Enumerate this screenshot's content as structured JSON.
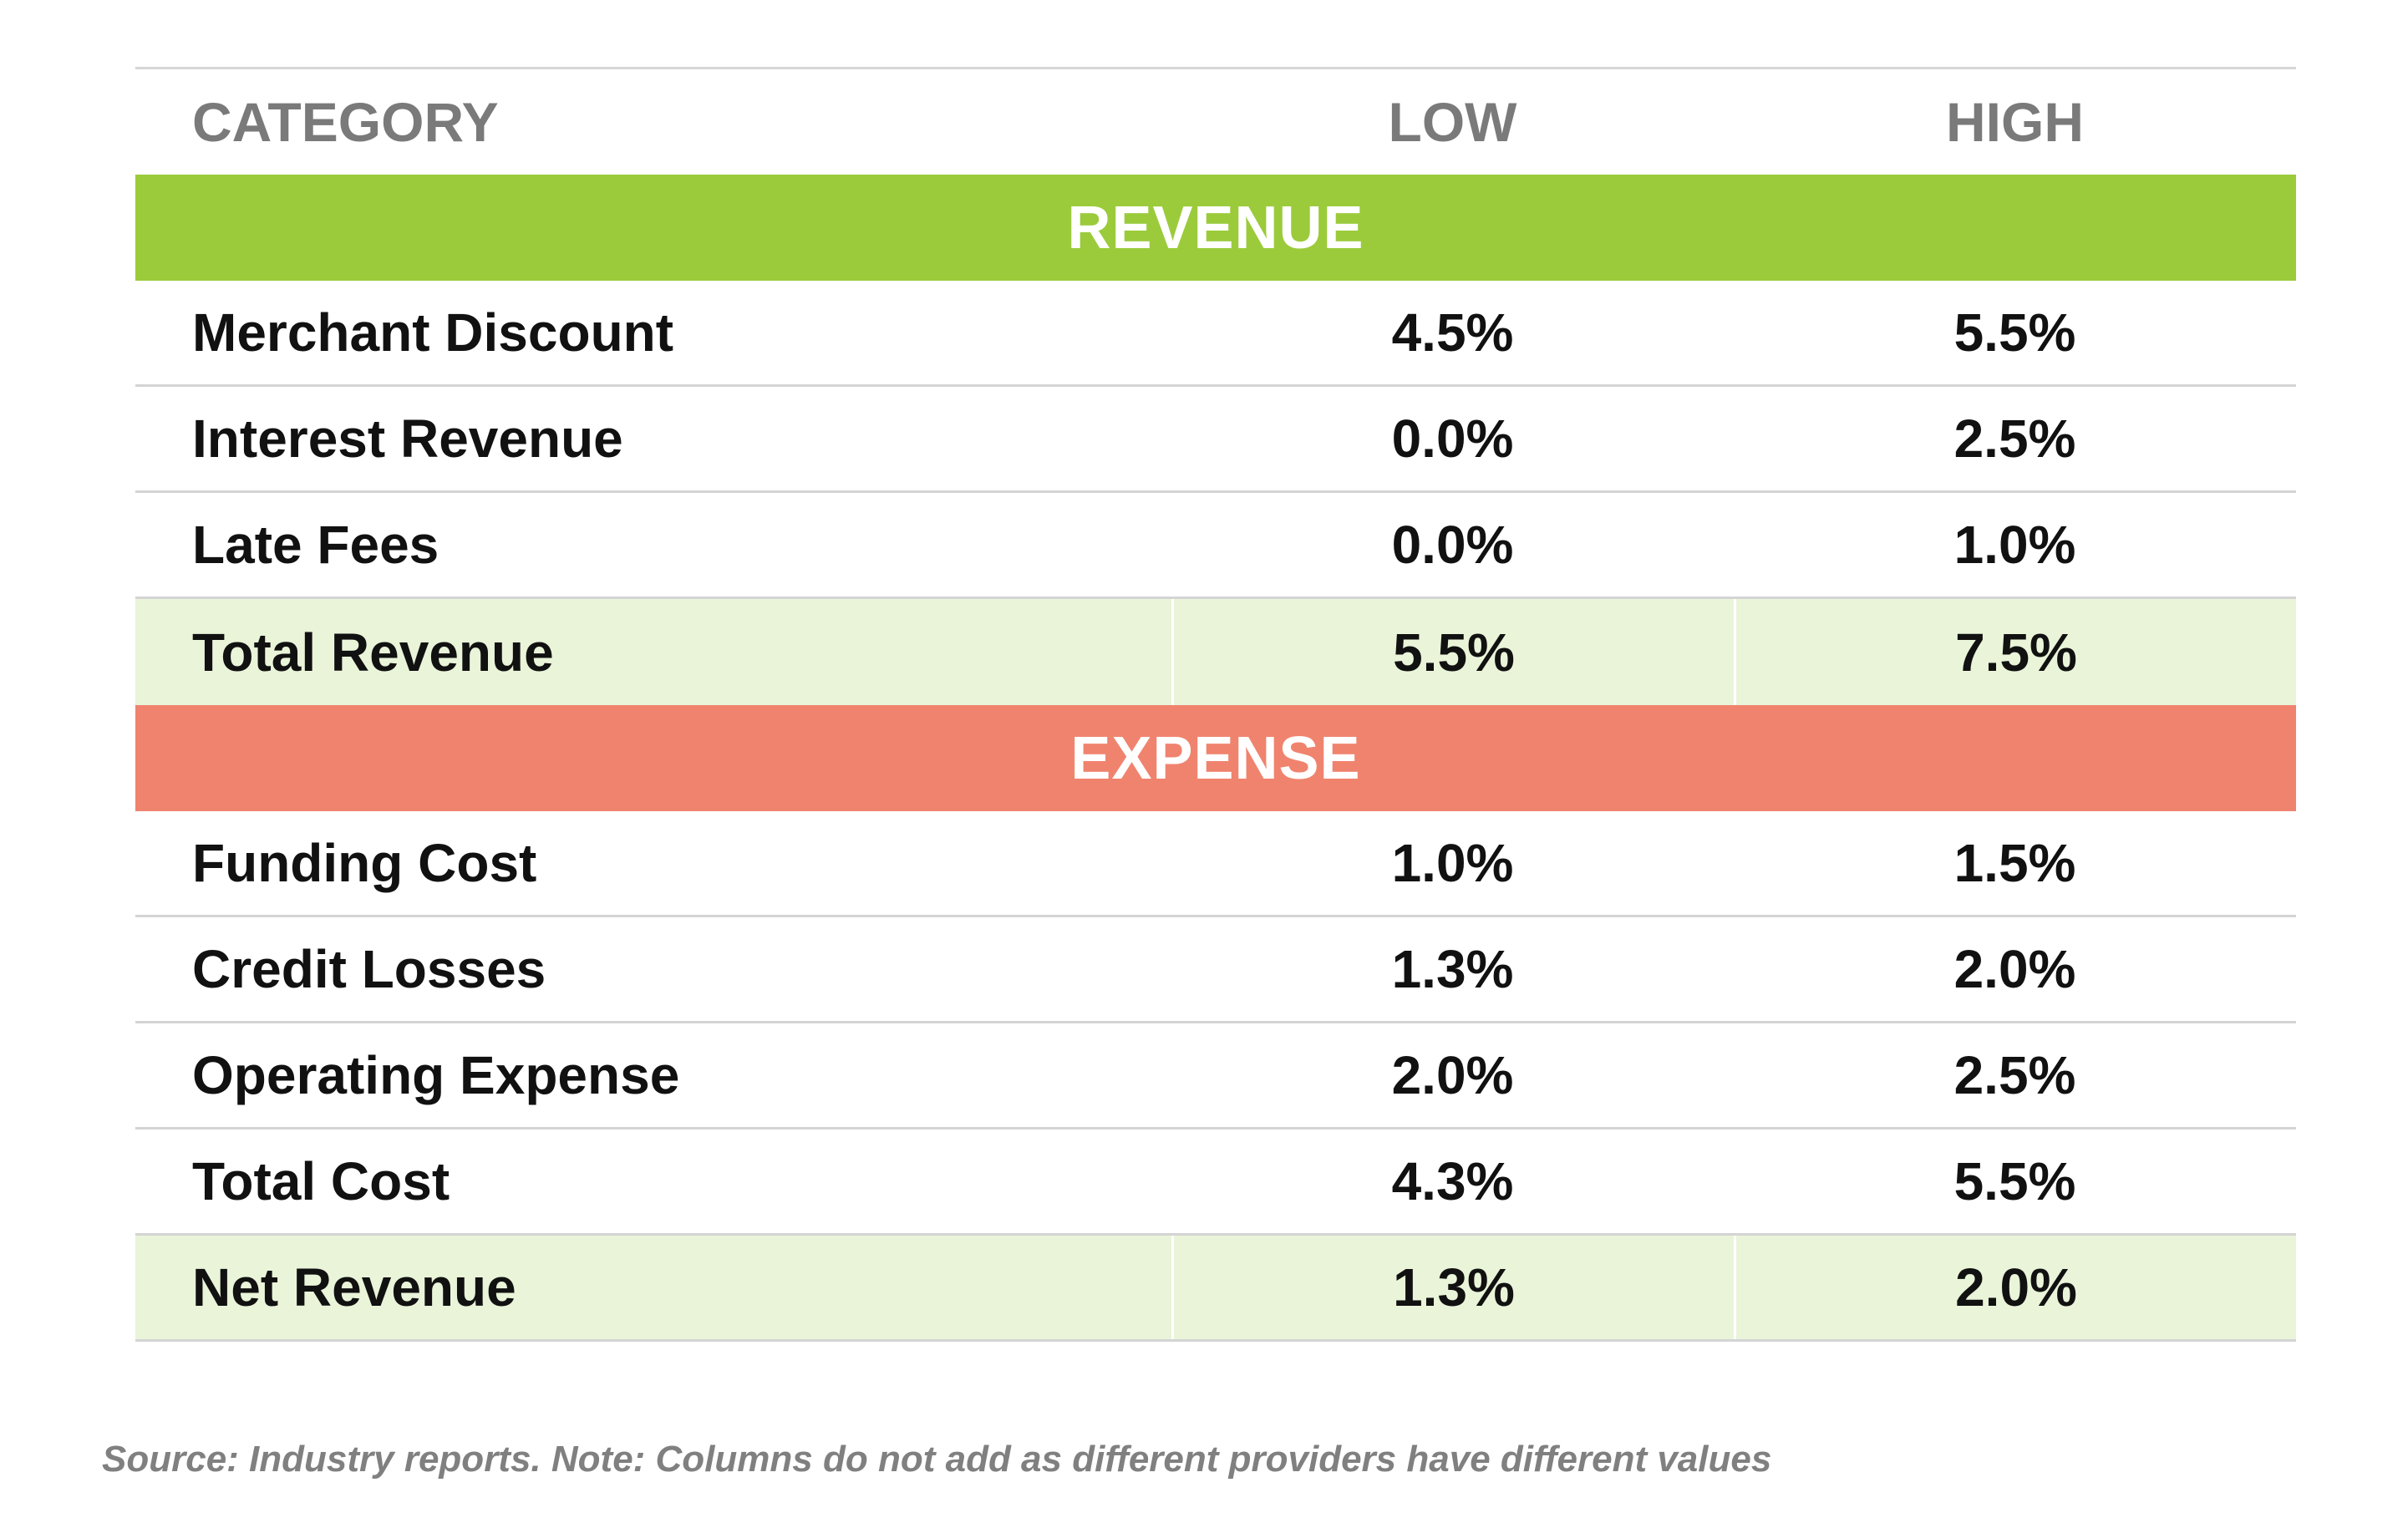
{
  "chart_data": {
    "type": "table",
    "columns": [
      "CATEGORY",
      "LOW",
      "HIGH"
    ],
    "sections": [
      {
        "name": "REVENUE",
        "color": "#9bcb3b",
        "rows": [
          {
            "category": "Merchant Discount",
            "low": "4.5%",
            "high": "5.5%",
            "total": false
          },
          {
            "category": "Interest Revenue",
            "low": "0.0%",
            "high": "2.5%",
            "total": false
          },
          {
            "category": "Late Fees",
            "low": "0.0%",
            "high": "1.0%",
            "total": false
          },
          {
            "category": "Total Revenue",
            "low": "5.5%",
            "high": "7.5%",
            "total": true
          }
        ]
      },
      {
        "name": "EXPENSE",
        "color": "#f0836e",
        "rows": [
          {
            "category": "Funding Cost",
            "low": "1.0%",
            "high": "1.5%",
            "total": false
          },
          {
            "category": "Credit Losses",
            "low": "1.3%",
            "high": "2.0%",
            "total": false
          },
          {
            "category": "Operating Expense",
            "low": "2.0%",
            "high": "2.5%",
            "total": false
          },
          {
            "category": "Total Cost",
            "low": "4.3%",
            "high": "5.5%",
            "total": false
          },
          {
            "category": "Net Revenue",
            "low": "1.3%",
            "high": "2.0%",
            "total": true
          }
        ]
      }
    ],
    "total_row_color": "#e9f4d9",
    "header_text_color": "#7a7a7a"
  },
  "footnote": "Source: Industry reports. Note: Columns do not add as different providers have different values"
}
